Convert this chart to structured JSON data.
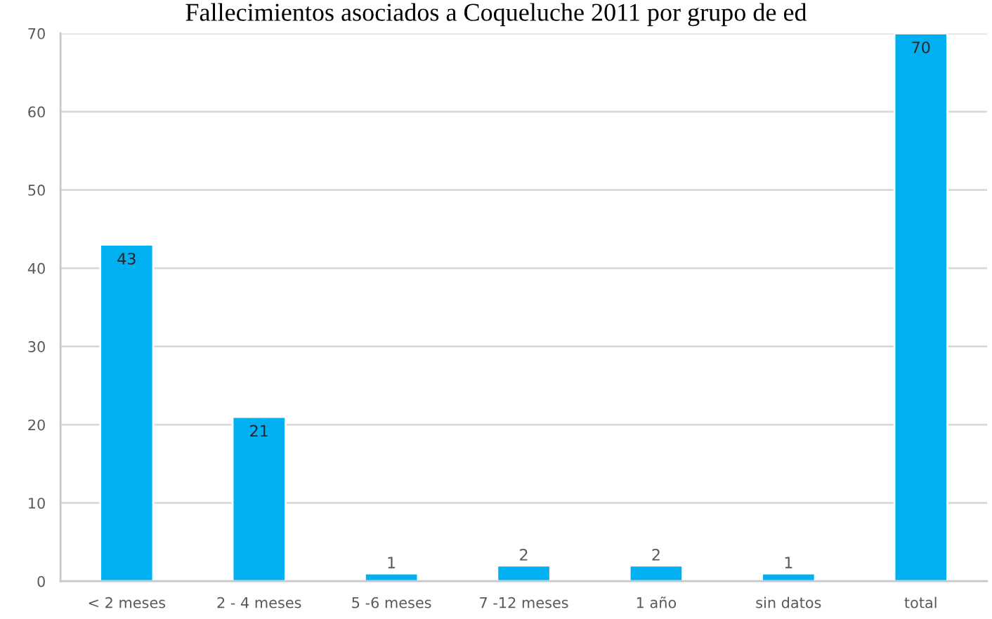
{
  "chart_data": {
    "type": "bar",
    "title": "Fallecimientos asociados a Coqueluche 2011 por grupo de ed",
    "categories": [
      "< 2 meses",
      "2 - 4 meses",
      "5 -6 meses",
      "7 -12 meses",
      "1 año",
      "sin datos",
      "total"
    ],
    "values": [
      43,
      21,
      1,
      2,
      2,
      1,
      70
    ],
    "color": "#00b0f0",
    "ylim": [
      0,
      70
    ],
    "yticks": [
      0,
      10,
      20,
      30,
      40,
      50,
      60,
      70
    ],
    "grid": "y",
    "data_labels": true
  }
}
